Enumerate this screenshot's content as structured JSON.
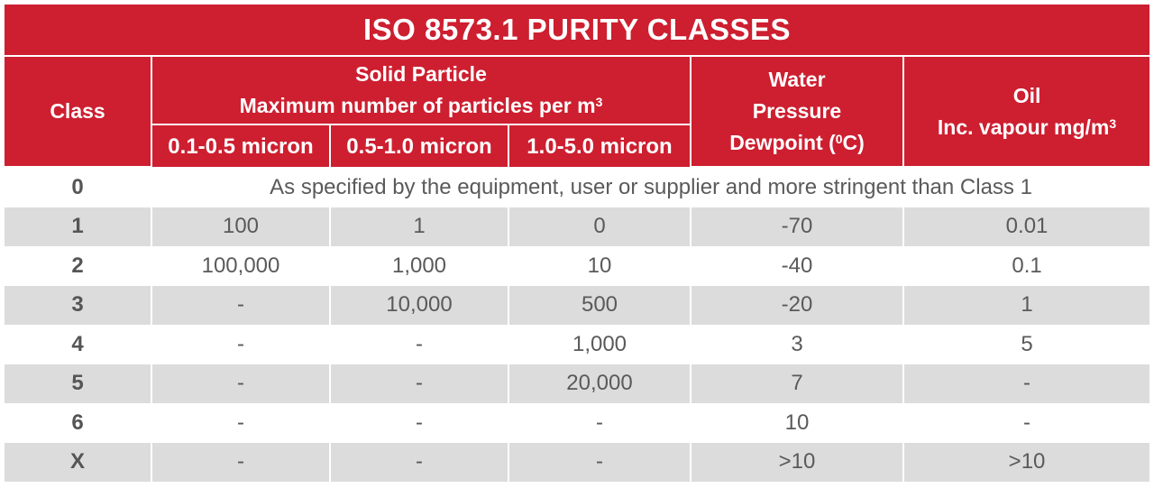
{
  "title": "ISO 8573.1 PURITY CLASSES",
  "headers": {
    "class": "Class",
    "solid_line1": "Solid Particle",
    "solid_line2": "Maximum number of particles per m",
    "solid_sup": "3",
    "sub1": "0.1-0.5 micron",
    "sub2": "0.5-1.0 micron",
    "sub3": "1.0-5.0 micron",
    "water_line1": "Water",
    "water_line2": "Pressure",
    "water_line3a": "Dewpoint (",
    "water_sup": "0",
    "water_line3b": "C)",
    "oil_line1": "Oil",
    "oil_line2": "Inc. vapour mg/m",
    "oil_sup": "3"
  },
  "row0": {
    "class": "0",
    "text": "As specified by the equipment, user or supplier and more stringent than Class 1"
  },
  "rows": [
    {
      "class": "1",
      "c1": "100",
      "c2": "1",
      "c3": "0",
      "water": "-70",
      "oil": "0.01"
    },
    {
      "class": "2",
      "c1": "100,000",
      "c2": "1,000",
      "c3": "10",
      "water": "-40",
      "oil": "0.1"
    },
    {
      "class": "3",
      "c1": "-",
      "c2": "10,000",
      "c3": "500",
      "water": "-20",
      "oil": "1"
    },
    {
      "class": "4",
      "c1": "-",
      "c2": "-",
      "c3": "1,000",
      "water": "3",
      "oil": "5"
    },
    {
      "class": "5",
      "c1": "-",
      "c2": "-",
      "c3": "20,000",
      "water": "7",
      "oil": "-"
    },
    {
      "class": "6",
      "c1": "-",
      "c2": "-",
      "c3": "-",
      "water": "10",
      "oil": "-"
    },
    {
      "class": "X",
      "c1": "-",
      "c2": "-",
      "c3": "-",
      "water": ">10",
      "oil": ">10"
    }
  ],
  "colors": {
    "header_red": "#cd1f30",
    "stripe_grey": "#dcdcdc"
  }
}
